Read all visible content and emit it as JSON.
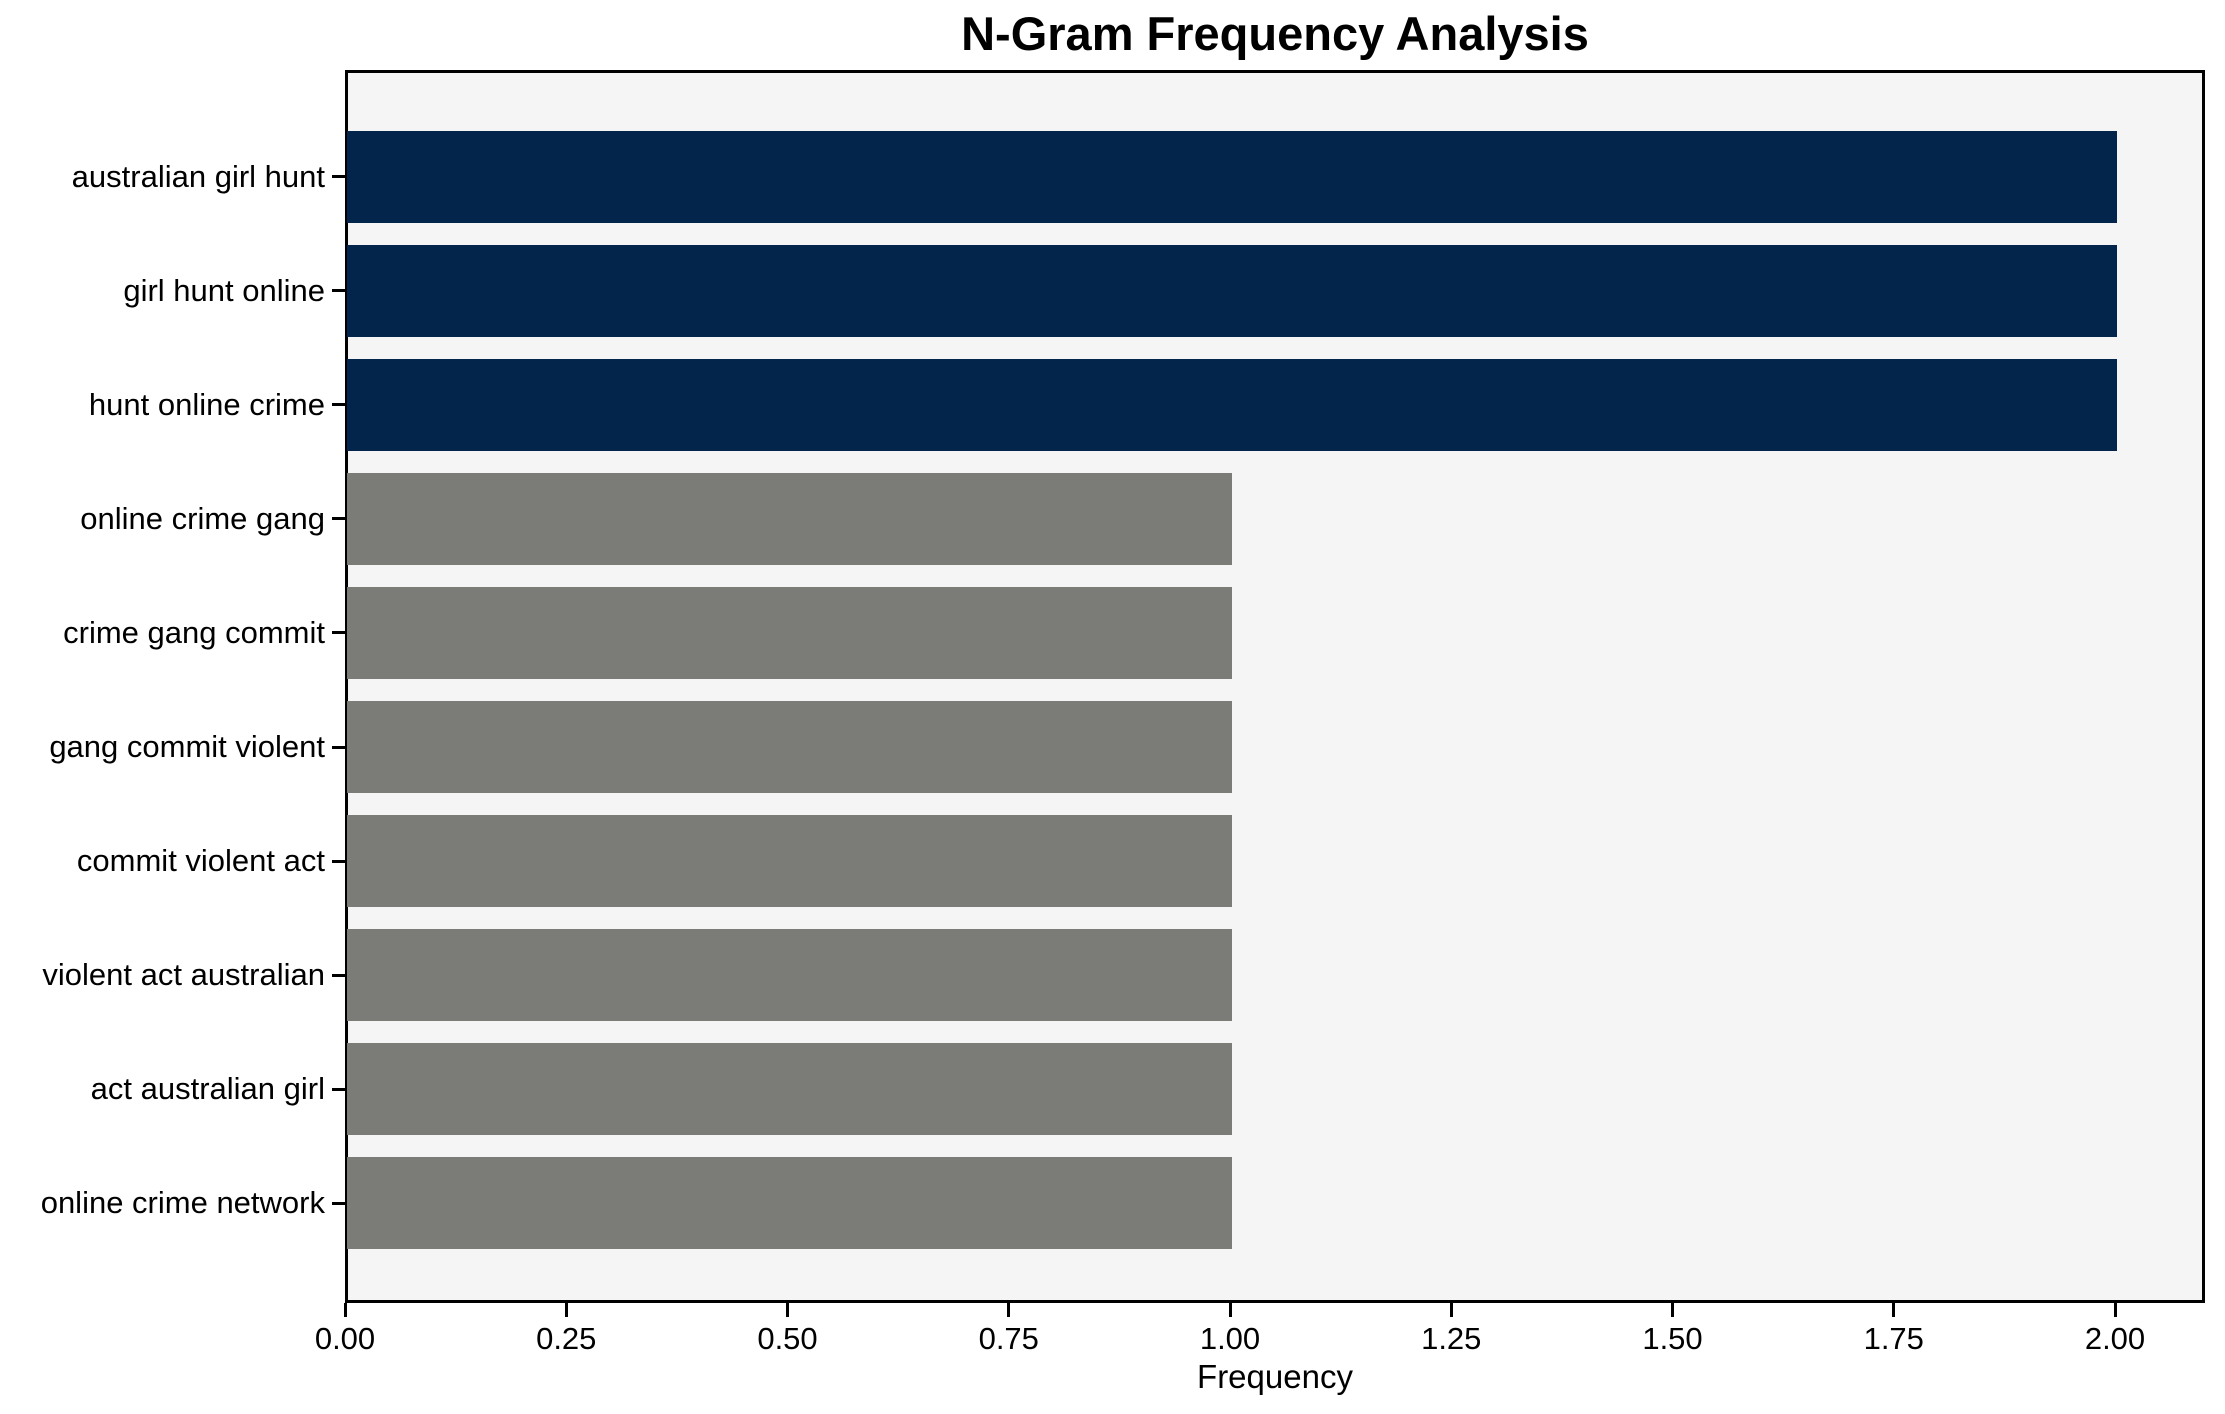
{
  "chart_data": {
    "type": "bar",
    "orientation": "horizontal",
    "title": "N-Gram Frequency Analysis",
    "xlabel": "Frequency",
    "ylabel": "",
    "categories": [
      "australian girl hunt",
      "girl hunt online",
      "hunt online crime",
      "online crime gang",
      "crime gang commit",
      "gang commit violent",
      "commit violent act",
      "violent act australian",
      "act australian girl",
      "online crime network"
    ],
    "values": [
      2,
      2,
      2,
      1,
      1,
      1,
      1,
      1,
      1,
      1
    ],
    "bar_colors": [
      "#03254c",
      "#03254c",
      "#03254c",
      "#7b7b78",
      "#7b7b78",
      "#7b7b78",
      "#7b7b78",
      "#7b7b78",
      "#7b7b78",
      "#7b7b78"
    ],
    "highlight_color": "#03254c",
    "base_color": "#7b7b78",
    "xlim": [
      0,
      2.1
    ],
    "x_ticks": [
      0,
      0.25,
      0.5,
      0.75,
      1.0,
      1.25,
      1.5,
      1.75,
      2.0
    ],
    "x_tick_labels": [
      "0.00",
      "0.25",
      "0.50",
      "0.75",
      "1.00",
      "1.25",
      "1.50",
      "1.75",
      "2.00"
    ],
    "grid": false,
    "legend": null,
    "plot_background": "#f5f5f5",
    "figure_background": "#ffffff",
    "spine_color": "#000000",
    "text_color": "#000000"
  }
}
